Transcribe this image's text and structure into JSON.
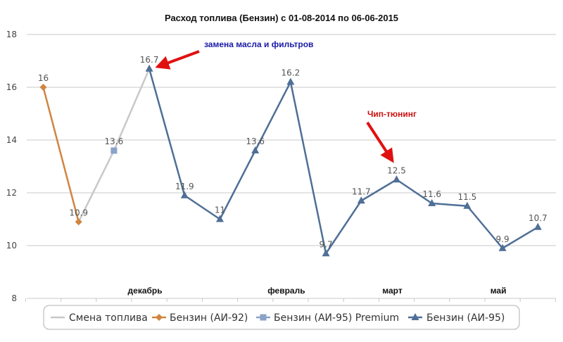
{
  "chart_data": {
    "type": "line",
    "title": "Расход топлива (Бензин) с 01-08-2014 по 06-06-2015",
    "xlabel": "",
    "ylabel": "",
    "ylim": [
      8,
      18
    ],
    "yticks": [
      8,
      10,
      12,
      14,
      16,
      18
    ],
    "grid": "horizontal",
    "legend_position": "bottom",
    "x_month_labels": [
      {
        "index": 3,
        "label": "декабрь"
      },
      {
        "index": 7,
        "label": "февраль"
      },
      {
        "index": 10,
        "label": "март"
      },
      {
        "index": 13,
        "label": "май"
      }
    ],
    "num_points": 15,
    "series": [
      {
        "name": "Смена топлива",
        "color": "#c8c8c8",
        "marker": "none",
        "points": [
          [
            1,
            10.9
          ],
          [
            2,
            13.6
          ],
          [
            3,
            16.7
          ]
        ],
        "show_labels": false
      },
      {
        "name": "Бензин (АИ-92)",
        "color": "#d08540",
        "marker": "diamond",
        "points": [
          [
            0,
            16
          ],
          [
            1,
            10.9
          ]
        ],
        "show_labels": true
      },
      {
        "name": "Бензин (АИ-95) Premium",
        "color": "#8aa2c8",
        "marker": "square",
        "points": [
          [
            2,
            13.6
          ]
        ],
        "show_labels": true
      },
      {
        "name": "Бензин (АИ-95)",
        "color": "#4f6f96",
        "marker": "triangle",
        "points": [
          [
            3,
            16.7
          ],
          [
            4,
            11.9
          ],
          [
            5,
            11
          ],
          [
            6,
            13.6
          ],
          [
            7,
            16.2
          ],
          [
            8,
            9.7
          ],
          [
            9,
            11.7
          ],
          [
            10,
            12.5
          ],
          [
            11,
            11.6
          ],
          [
            12,
            11.5
          ],
          [
            13,
            9.9
          ],
          [
            14,
            10.7
          ]
        ],
        "show_labels": true
      }
    ],
    "annotations": [
      {
        "text": "замена масла и фильтров",
        "color": "#1a1aa8",
        "target_index": 3,
        "target_value": 16.7
      },
      {
        "text": "Чип-тюнинг",
        "color": "#cc1111",
        "target_index": 10,
        "target_value": 12.5
      }
    ]
  }
}
